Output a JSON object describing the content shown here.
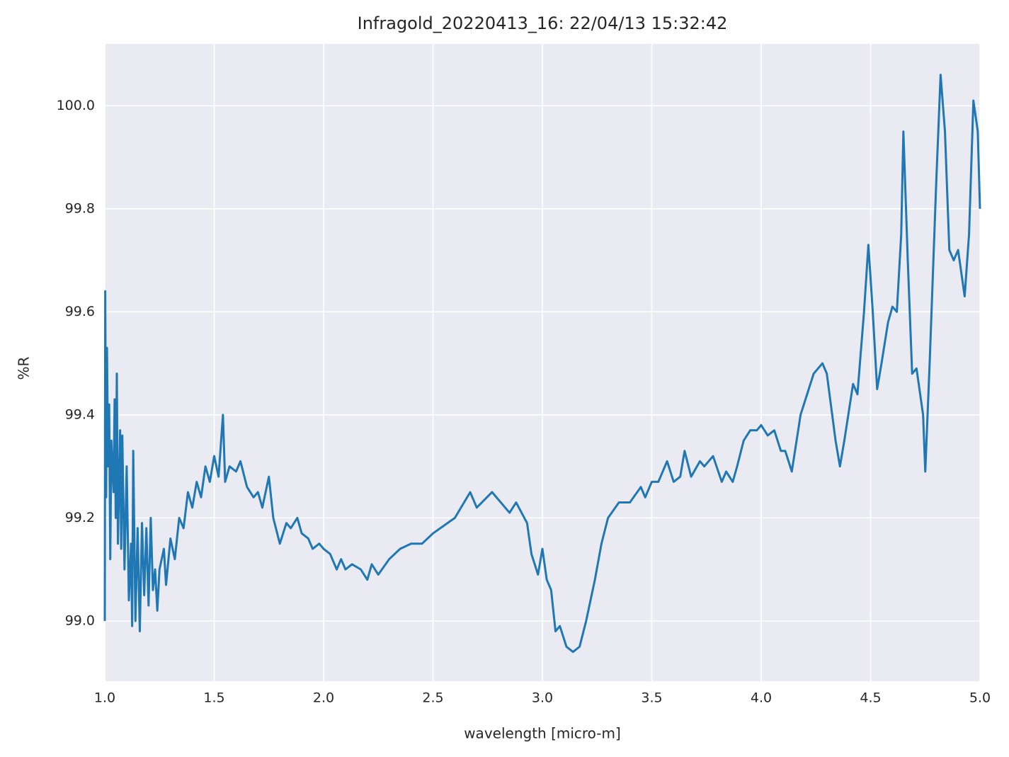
{
  "chart_data": {
    "type": "line",
    "title": "Infragold_20220413_16:  22/04/13 15:32:42",
    "x_label": "wavelength [micro-m]",
    "y_label": "%R",
    "color": "#1f77b4",
    "grid": true,
    "xlim": [
      1.0,
      5.0
    ],
    "ylim": [
      98.883,
      100.12
    ],
    "xticks": [
      {
        "value": 1,
        "label": "1.0"
      },
      1.5,
      {
        "value": 2,
        "label": "2.0"
      },
      2.5,
      {
        "value": 3,
        "label": "3.0"
      },
      3.5,
      {
        "value": 4,
        "label": "4.0"
      },
      4.5,
      {
        "value": 5,
        "label": "5.0"
      }
    ],
    "yticks": [
      {
        "value": 99,
        "label": "99.0"
      },
      99.2,
      99.4,
      99.6,
      99.8,
      {
        "value": 100,
        "label": "100.0"
      }
    ],
    "x": [
      1.0,
      1.002,
      1.006,
      1.01,
      1.015,
      1.02,
      1.025,
      1.03,
      1.04,
      1.045,
      1.05,
      1.055,
      1.06,
      1.07,
      1.075,
      1.08,
      1.09,
      1.1,
      1.11,
      1.12,
      1.125,
      1.13,
      1.14,
      1.15,
      1.16,
      1.17,
      1.18,
      1.19,
      1.2,
      1.21,
      1.22,
      1.23,
      1.24,
      1.25,
      1.27,
      1.28,
      1.3,
      1.32,
      1.34,
      1.36,
      1.38,
      1.4,
      1.42,
      1.44,
      1.46,
      1.48,
      1.5,
      1.52,
      1.54,
      1.55,
      1.57,
      1.6,
      1.62,
      1.65,
      1.68,
      1.7,
      1.72,
      1.75,
      1.77,
      1.8,
      1.83,
      1.85,
      1.88,
      1.9,
      1.93,
      1.95,
      1.98,
      2.0,
      2.03,
      2.06,
      2.08,
      2.1,
      2.13,
      2.17,
      2.2,
      2.22,
      2.25,
      2.3,
      2.35,
      2.4,
      2.45,
      2.5,
      2.6,
      2.67,
      2.7,
      2.77,
      2.85,
      2.88,
      2.93,
      2.95,
      2.98,
      3.0,
      3.02,
      3.04,
      3.06,
      3.08,
      3.11,
      3.14,
      3.17,
      3.2,
      3.24,
      3.27,
      3.3,
      3.35,
      3.4,
      3.45,
      3.47,
      3.5,
      3.53,
      3.57,
      3.6,
      3.63,
      3.65,
      3.68,
      3.72,
      3.74,
      3.78,
      3.82,
      3.84,
      3.87,
      3.89,
      3.92,
      3.95,
      3.98,
      4.0,
      4.03,
      4.06,
      4.09,
      4.11,
      4.14,
      4.18,
      4.21,
      4.24,
      4.28,
      4.3,
      4.34,
      4.36,
      4.38,
      4.42,
      4.44,
      4.47,
      4.49,
      4.51,
      4.53,
      4.55,
      4.58,
      4.6,
      4.62,
      4.64,
      4.65,
      4.67,
      4.69,
      4.71,
      4.74,
      4.75,
      4.77,
      4.8,
      4.82,
      4.84,
      4.86,
      4.88,
      4.9,
      4.93,
      4.95,
      4.97,
      4.99,
      5.0
    ],
    "values": [
      99.0,
      99.64,
      99.24,
      99.53,
      99.3,
      99.42,
      99.12,
      99.35,
      99.25,
      99.43,
      99.2,
      99.48,
      99.15,
      99.37,
      99.14,
      99.36,
      99.1,
      99.3,
      99.04,
      99.15,
      98.99,
      99.33,
      99.0,
      99.18,
      98.98,
      99.19,
      99.05,
      99.18,
      99.03,
      99.2,
      99.06,
      99.1,
      99.02,
      99.1,
      99.14,
      99.07,
      99.16,
      99.12,
      99.2,
      99.18,
      99.25,
      99.22,
      99.27,
      99.24,
      99.3,
      99.27,
      99.32,
      99.28,
      99.4,
      99.27,
      99.3,
      99.29,
      99.31,
      99.26,
      99.24,
      99.25,
      99.22,
      99.28,
      99.2,
      99.15,
      99.19,
      99.18,
      99.2,
      99.17,
      99.16,
      99.14,
      99.15,
      99.14,
      99.13,
      99.1,
      99.12,
      99.1,
      99.11,
      99.1,
      99.08,
      99.11,
      99.09,
      99.12,
      99.14,
      99.15,
      99.15,
      99.17,
      99.2,
      99.25,
      99.22,
      99.25,
      99.21,
      99.23,
      99.19,
      99.13,
      99.09,
      99.14,
      99.08,
      99.06,
      98.98,
      98.99,
      98.95,
      98.94,
      98.95,
      99.0,
      99.08,
      99.15,
      99.2,
      99.23,
      99.23,
      99.26,
      99.24,
      99.27,
      99.27,
      99.31,
      99.27,
      99.28,
      99.33,
      99.28,
      99.31,
      99.3,
      99.32,
      99.27,
      99.29,
      99.27,
      99.3,
      99.35,
      99.37,
      99.37,
      99.38,
      99.36,
      99.37,
      99.33,
      99.33,
      99.29,
      99.4,
      99.44,
      99.48,
      99.5,
      99.48,
      99.35,
      99.3,
      99.35,
      99.46,
      99.44,
      99.6,
      99.73,
      99.6,
      99.45,
      99.5,
      99.58,
      99.61,
      99.6,
      99.75,
      99.95,
      99.7,
      99.48,
      99.49,
      99.4,
      99.29,
      99.5,
      99.85,
      100.06,
      99.95,
      99.72,
      99.7,
      99.72,
      99.63,
      99.75,
      100.01,
      99.95,
      99.8
    ]
  }
}
